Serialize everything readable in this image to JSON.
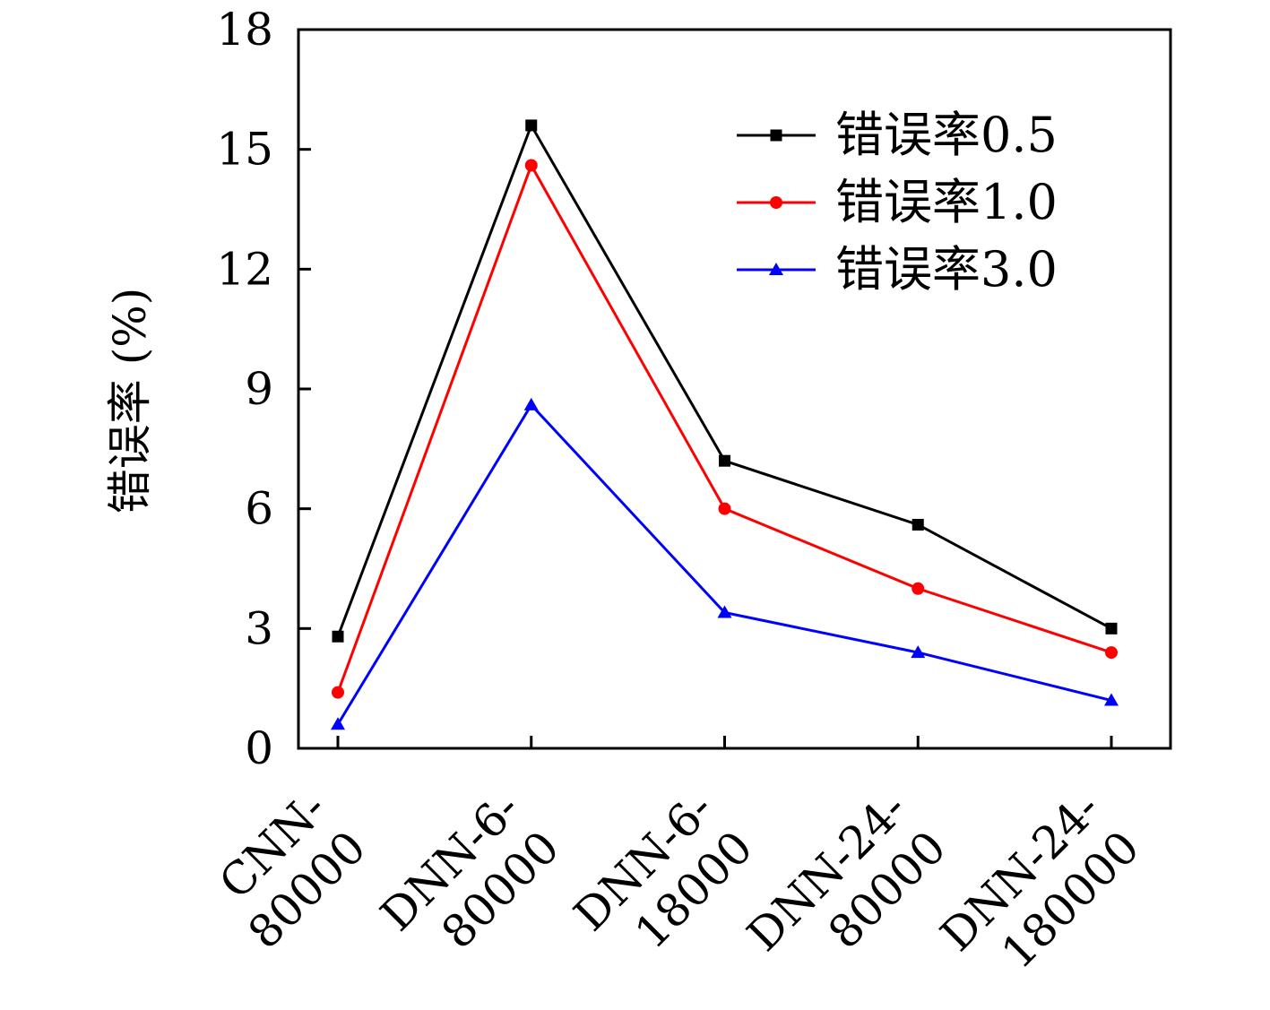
{
  "chart_data": {
    "type": "line",
    "title": "",
    "xlabel": "",
    "ylabel": "错误率 (%)",
    "ylim": [
      0,
      18
    ],
    "yticks": [
      0,
      3,
      6,
      9,
      12,
      15,
      18
    ],
    "grid": false,
    "legend_position": "top-right",
    "categories": [
      [
        "CNN-",
        "80000"
      ],
      [
        "DNN-6-",
        "80000"
      ],
      [
        "DNN-6-",
        "18000"
      ],
      [
        "DNN-24-",
        "80000"
      ],
      [
        "DNN-24-",
        "180000"
      ]
    ],
    "series": [
      {
        "name": "错误率0.5",
        "color": "#000000",
        "marker": "square",
        "values": [
          2.8,
          15.6,
          7.2,
          5.6,
          3.0
        ]
      },
      {
        "name": "错误率1.0",
        "color": "#ff0000",
        "marker": "circle",
        "values": [
          1.4,
          14.6,
          6.0,
          4.0,
          2.4
        ]
      },
      {
        "name": "错误率3.0",
        "color": "#0000ff",
        "marker": "triangle",
        "values": [
          0.6,
          8.6,
          3.4,
          2.4,
          1.2
        ]
      }
    ]
  }
}
